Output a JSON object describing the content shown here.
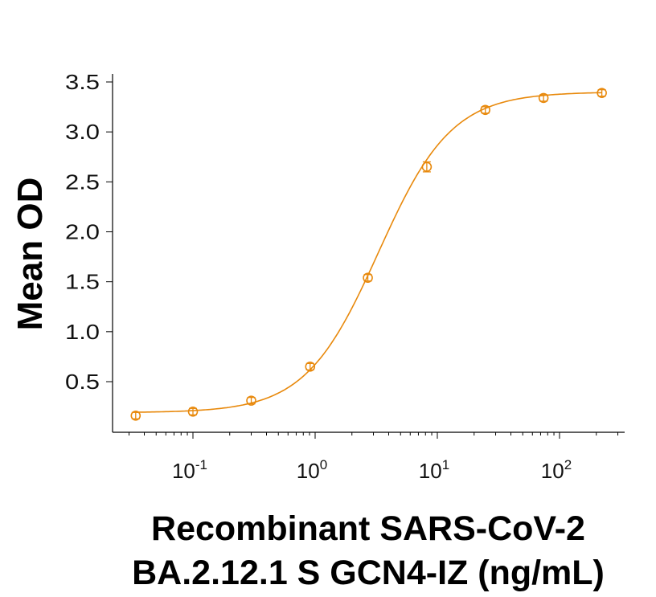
{
  "chart_data": {
    "type": "line",
    "title": "",
    "xlabel_lines": [
      "Recombinant SARS-CoV-2",
      "BA.2.12.1 S GCN4-IZ (ng/mL)"
    ],
    "ylabel": "Mean OD",
    "xscale": "log",
    "xlim": [
      0.025,
      300
    ],
    "ylim": [
      0.0,
      3.55
    ],
    "yticks": [
      0.5,
      1.0,
      1.5,
      2.0,
      2.5,
      3.0,
      3.5
    ],
    "ytick_labels": [
      "0.5",
      "1.0",
      "1.5",
      "2.0",
      "2.5",
      "3.0",
      "3.5"
    ],
    "xticks": [
      0.1,
      1,
      10,
      100
    ],
    "xtick_labels": [
      {
        "base": "10",
        "exp": "-1"
      },
      {
        "base": "10",
        "exp": "0"
      },
      {
        "base": "10",
        "exp": "1"
      },
      {
        "base": "10",
        "exp": "2"
      }
    ],
    "grid": false,
    "legend": null,
    "series": [
      {
        "name": "Mean OD",
        "color": "#E8890C",
        "marker": "open-circle-with-error-bars",
        "x": [
          0.034,
          0.1,
          0.3,
          0.91,
          2.7,
          8.2,
          24.7,
          74,
          222
        ],
        "values": [
          0.16,
          0.2,
          0.31,
          0.65,
          1.54,
          2.65,
          3.22,
          3.34,
          3.39
        ],
        "error": [
          0.01,
          0.01,
          0.02,
          0.02,
          0.03,
          0.05,
          0.03,
          0.02,
          0.03
        ],
        "fit": "4PL"
      }
    ]
  }
}
